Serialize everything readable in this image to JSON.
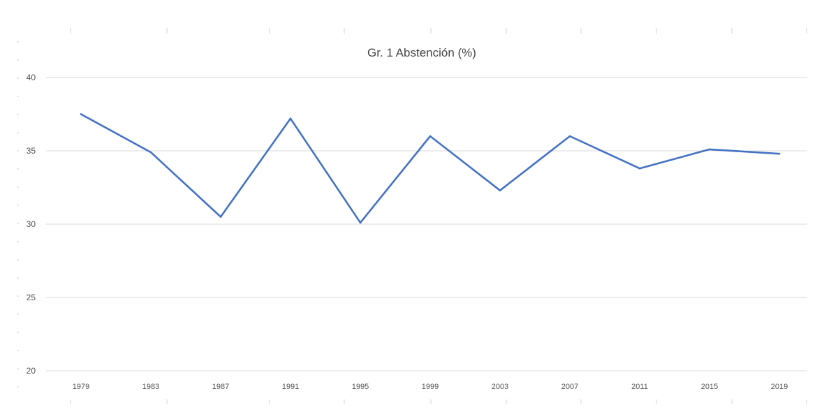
{
  "chart_data": {
    "type": "line",
    "title": "Gr. 1 Abstención (%)",
    "xlabel": "",
    "ylabel": "",
    "categories": [
      "1979",
      "1983",
      "1987",
      "1991",
      "1995",
      "1999",
      "2003",
      "2007",
      "2011",
      "2015",
      "2019"
    ],
    "series": [
      {
        "values": [
          37.5,
          34.9,
          30.5,
          37.2,
          30.1,
          36.0,
          32.3,
          36.0,
          33.8,
          35.1,
          34.8
        ],
        "color": "#4472c4"
      }
    ],
    "ylim": [
      20,
      40
    ],
    "yticks": [
      "20",
      "25",
      "30",
      "35",
      "40"
    ],
    "grid": true,
    "legend": "none"
  }
}
